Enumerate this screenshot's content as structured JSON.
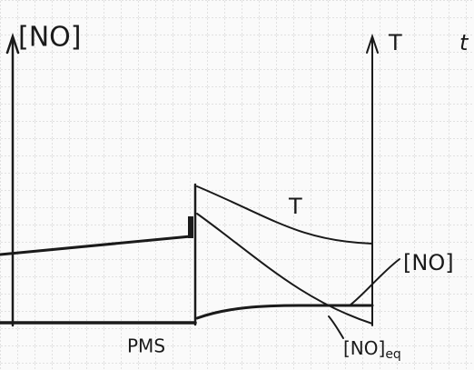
{
  "left_axis_label": "[NO]",
  "right_axis_label": "T",
  "corner_text": "t",
  "curve_labels": {
    "temperature": "T",
    "no": "[NO]",
    "no_eq": "[NO]",
    "no_eq_subscript": "eq"
  },
  "x_label": "PMS"
}
